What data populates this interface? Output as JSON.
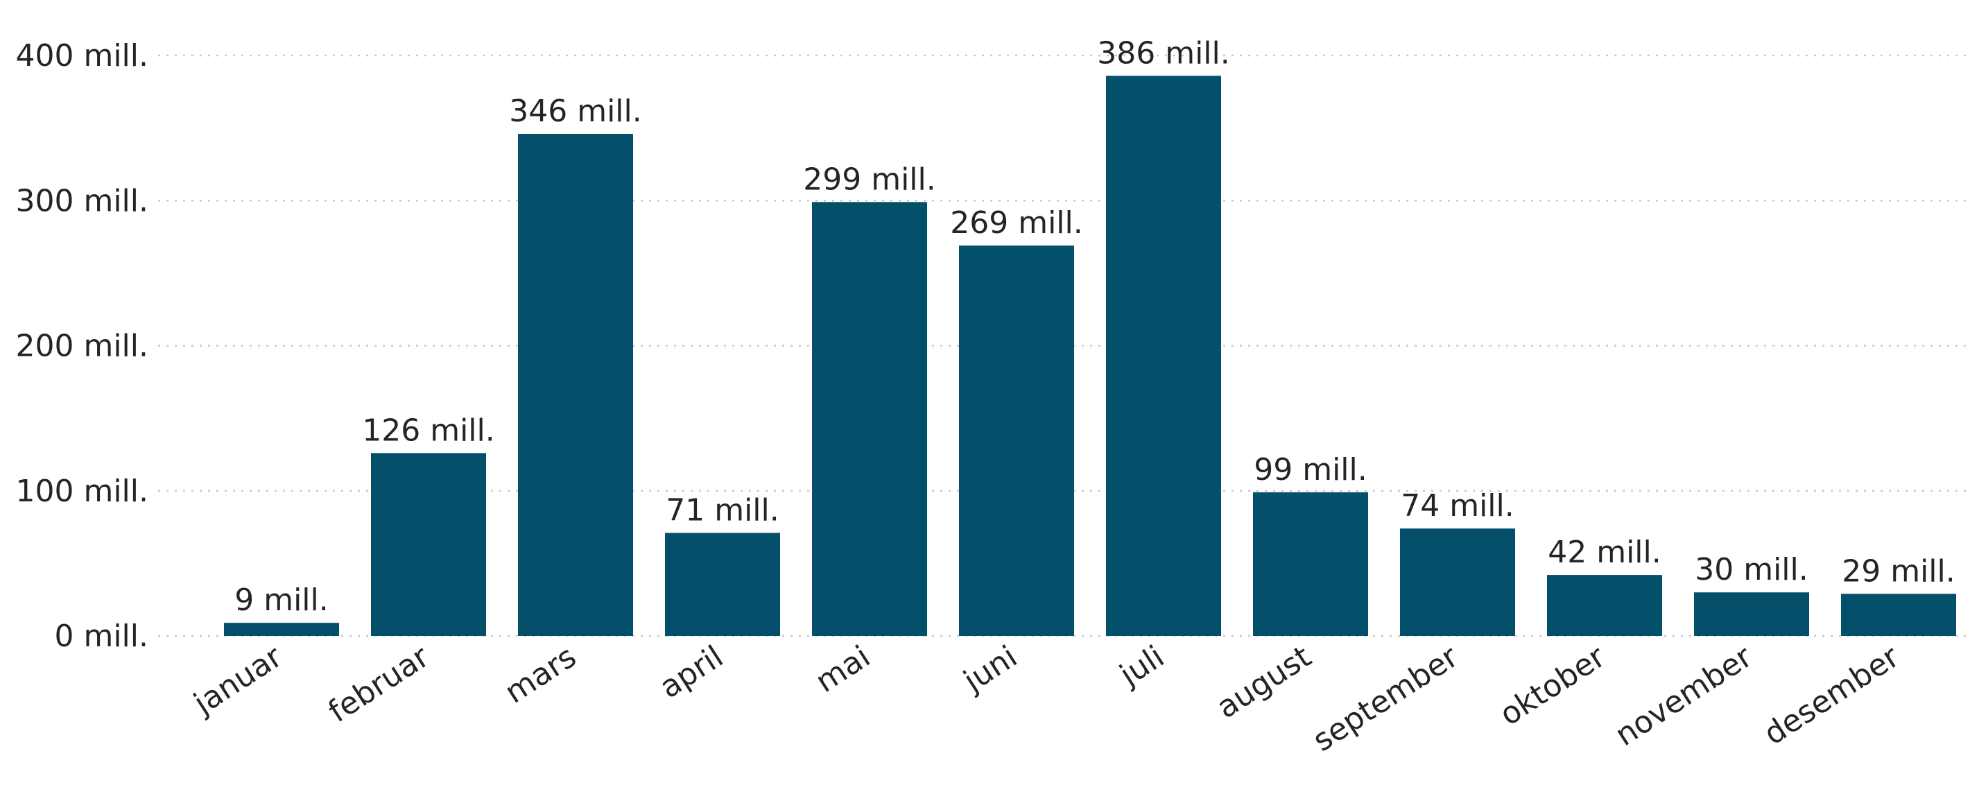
{
  "chart_data": {
    "type": "bar",
    "title": "",
    "xlabel": "",
    "ylabel": "",
    "categories": [
      "januar",
      "februar",
      "mars",
      "april",
      "mai",
      "juni",
      "juli",
      "august",
      "september",
      "oktober",
      "november",
      "desember"
    ],
    "values": [
      9,
      126,
      346,
      71,
      299,
      269,
      386,
      99,
      74,
      42,
      30,
      29
    ],
    "data_labels": [
      "9 mill.",
      "126 mill.",
      "346 mill.",
      "71 mill.",
      "299 mill.",
      "269 mill.",
      "386 mill.",
      "99 mill.",
      "74 mill.",
      "42 mill.",
      "30 mill.",
      "29 mill."
    ],
    "value_unit": "mill.",
    "ylim": [
      0,
      400
    ],
    "yticks": [
      0,
      100,
      200,
      300,
      400
    ],
    "ytick_labels": [
      "0 mill.",
      "100 mill.",
      "200 mill.",
      "300 mill.",
      "400 mill."
    ],
    "grid": true,
    "legend": "none",
    "bar_color": "#04506A",
    "grid_color": "#C8C8C8"
  }
}
